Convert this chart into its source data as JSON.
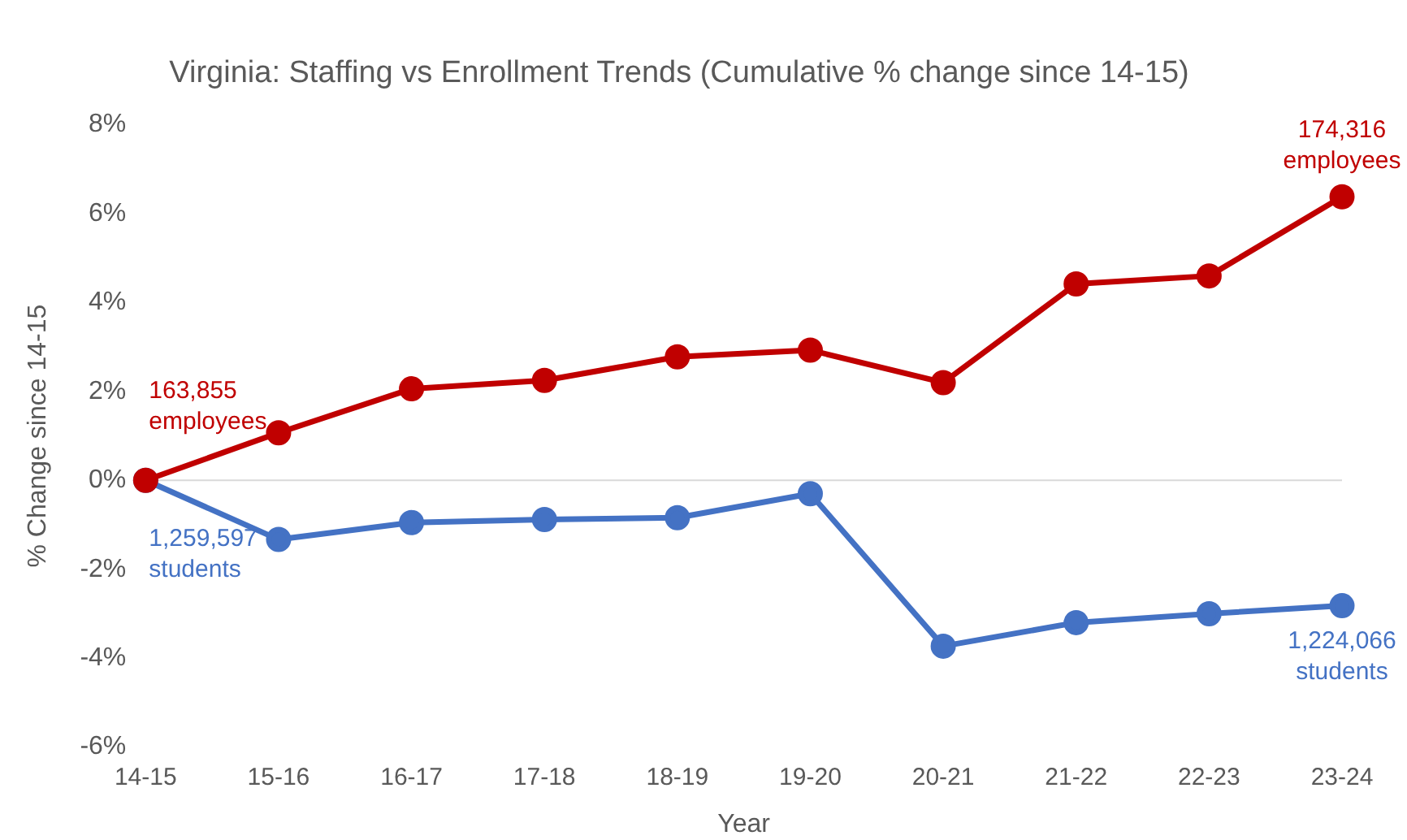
{
  "chart_data": {
    "type": "line",
    "title": "Virginia: Staffing vs Enrollment Trends (Cumulative % change since 14-15)",
    "xlabel": "Year",
    "ylabel": "% Change since 14-15",
    "categories": [
      "14-15",
      "15-16",
      "16-17",
      "17-18",
      "18-19",
      "19-20",
      "20-21",
      "21-22",
      "22-23",
      "23-24"
    ],
    "series": [
      {
        "color": "#c00000",
        "values": [
          0,
          1.07,
          2.06,
          2.25,
          2.78,
          2.93,
          2.2,
          4.42,
          4.6,
          6.38
        ]
      },
      {
        "color": "#4472c4",
        "values": [
          0,
          -1.33,
          -0.95,
          -0.88,
          -0.84,
          -0.3,
          -3.73,
          -3.2,
          -3.0,
          -2.82
        ]
      }
    ],
    "ylim": [
      -6,
      8
    ],
    "yticks": [
      {
        "value": -6,
        "label": "-6%"
      },
      {
        "value": -4,
        "label": "-4%"
      },
      {
        "value": -2,
        "label": "-2%"
      },
      {
        "value": 0,
        "label": "0%"
      },
      {
        "value": 2,
        "label": "2%"
      },
      {
        "value": 4,
        "label": "4%"
      },
      {
        "value": 6,
        "label": "6%"
      },
      {
        "value": 8,
        "label": "8%"
      }
    ],
    "grid": false,
    "legend": false,
    "marker": "circle",
    "line_style": "solid",
    "ref_lines": [
      {
        "axis": "y",
        "value": 0,
        "color": "#d9d9d9"
      }
    ],
    "annotations": [
      {
        "text": "163,855\nemployees",
        "x": "14-15",
        "y": 0
      },
      {
        "text": "174,316\nemployees",
        "x": "23-24",
        "y": 6.38
      },
      {
        "text": "1,259,597\nstudents",
        "x": "14-15",
        "y": 0
      },
      {
        "text": "1,224,066\nstudents",
        "x": "23-24",
        "y": -2.82
      }
    ]
  }
}
